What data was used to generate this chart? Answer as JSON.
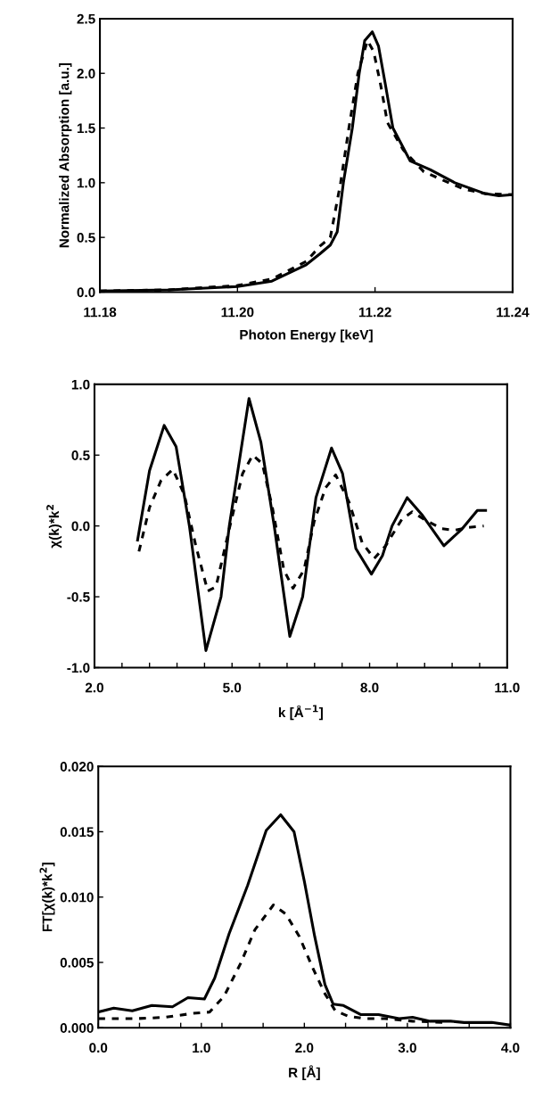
{
  "chart_data": [
    {
      "type": "line",
      "xlabel": "Photon Energy [keV]",
      "ylabel": "Normalized Absorption [a.u.]",
      "xlim": [
        11.18,
        11.24
      ],
      "ylim": [
        0,
        2.5
      ],
      "xticks": [
        {
          "value": 11.18,
          "label": "11.18"
        },
        {
          "value": 11.2,
          "label": "11.20"
        },
        {
          "value": 11.22,
          "label": "11.22"
        },
        {
          "value": 11.24,
          "label": "11.24"
        }
      ],
      "yticks": [
        {
          "value": 0,
          "label": "0.0"
        },
        {
          "value": 0.5,
          "label": "0.5"
        },
        {
          "value": 1,
          "label": "1.0"
        },
        {
          "value": 1.5,
          "label": "1.5"
        },
        {
          "value": 2,
          "label": "2.0"
        },
        {
          "value": 2.5,
          "label": "2.5"
        }
      ],
      "series": [
        {
          "color": "#000000",
          "line_style": "solid",
          "x": [
            11.18,
            11.19,
            11.2,
            11.205,
            11.21,
            11.212,
            11.2135,
            11.2145,
            11.2154,
            11.2167,
            11.2177,
            11.2185,
            11.2196,
            11.2205,
            11.2215,
            11.2226,
            11.2251,
            11.228,
            11.2316,
            11.236,
            11.238,
            11.24
          ],
          "values": [
            0.01,
            0.02,
            0.05,
            0.1,
            0.25,
            0.35,
            0.43,
            0.55,
            1.0,
            1.5,
            2.0,
            2.3,
            2.38,
            2.25,
            1.9,
            1.5,
            1.2,
            1.12,
            1.0,
            0.9,
            0.88,
            0.89
          ]
        },
        {
          "color": "#000000",
          "line_style": "dashed",
          "x": [
            11.18,
            11.19,
            11.2,
            11.205,
            11.21,
            11.212,
            11.2135,
            11.215,
            11.2162,
            11.2175,
            11.2189,
            11.2198,
            11.2208,
            11.2218,
            11.2241,
            11.2271,
            11.2311,
            11.233,
            11.236,
            11.24
          ],
          "values": [
            0.01,
            0.02,
            0.06,
            0.12,
            0.28,
            0.42,
            0.5,
            1.0,
            1.5,
            2.0,
            2.3,
            2.2,
            1.9,
            1.55,
            1.3,
            1.1,
            0.99,
            0.94,
            0.9,
            0.89
          ]
        }
      ]
    },
    {
      "type": "line",
      "xlabel": "k [Å$^{−1}$]",
      "ylabel": "χ(k)*k$^{2}$",
      "xlim": [
        2,
        11
      ],
      "ylim": [
        -1,
        1
      ],
      "xticks": [
        {
          "value": 2,
          "label": "2.0"
        },
        {
          "value": 2.6,
          "label": null
        },
        {
          "value": 3.2,
          "label": null
        },
        {
          "value": 3.8,
          "label": null
        },
        {
          "value": 4.4,
          "label": null
        },
        {
          "value": 5,
          "label": "5.0"
        },
        {
          "value": 5.6,
          "label": null
        },
        {
          "value": 6.2,
          "label": null
        },
        {
          "value": 6.8,
          "label": null
        },
        {
          "value": 7.4,
          "label": null
        },
        {
          "value": 8,
          "label": "8.0"
        },
        {
          "value": 8.6,
          "label": null
        },
        {
          "value": 9.2,
          "label": null
        },
        {
          "value": 9.8,
          "label": null
        },
        {
          "value": 10.4,
          "label": null
        },
        {
          "value": 11,
          "label": "11.0"
        }
      ],
      "yticks": [
        {
          "value": -1,
          "label": "-1.0"
        },
        {
          "value": -0.5,
          "label": "-0.5"
        },
        {
          "value": 0,
          "label": "0.0"
        },
        {
          "value": 0.5,
          "label": "0.5"
        },
        {
          "value": 1,
          "label": "1.0"
        }
      ],
      "series": [
        {
          "color": "#000000",
          "line_style": "solid",
          "x": [
            2.94,
            3.2,
            3.52,
            3.78,
            4.07,
            4.43,
            4.76,
            4.94,
            5.37,
            5.63,
            5.92,
            6.26,
            6.54,
            6.83,
            7.17,
            7.41,
            7.7,
            8.04,
            8.28,
            8.49,
            8.82,
            9.14,
            9.62,
            10.02,
            10.35,
            10.53
          ],
          "values": [
            -0.1,
            0.39,
            0.71,
            0.56,
            0.0,
            -0.88,
            -0.5,
            0.0,
            0.9,
            0.59,
            0.0,
            -0.78,
            -0.5,
            0.2,
            0.55,
            0.37,
            -0.16,
            -0.34,
            -0.21,
            0.0,
            0.2,
            0.08,
            -0.14,
            -0.02,
            0.11,
            0.11
          ]
        },
        {
          "color": "#000000",
          "line_style": "dashed",
          "x": [
            2.97,
            3.2,
            3.45,
            3.71,
            3.96,
            4.21,
            4.47,
            4.65,
            4.94,
            5.23,
            5.45,
            5.66,
            5.88,
            6.13,
            6.33,
            6.57,
            6.79,
            7.04,
            7.26,
            7.55,
            7.84,
            8.1,
            8.35,
            8.71,
            8.93,
            9.22,
            9.58,
            9.87,
            10.16,
            10.49
          ],
          "values": [
            -0.18,
            0.13,
            0.32,
            0.4,
            0.22,
            -0.14,
            -0.46,
            -0.43,
            -0.02,
            0.37,
            0.5,
            0.44,
            0.13,
            -0.31,
            -0.44,
            -0.31,
            0.03,
            0.27,
            0.36,
            0.17,
            -0.12,
            -0.23,
            -0.14,
            0.05,
            0.1,
            0.04,
            -0.02,
            -0.03,
            -0.01,
            0.0
          ]
        }
      ]
    },
    {
      "type": "line",
      "xlabel": "R [Å]",
      "ylabel": "FT[χ(k)*k$^{2}$]",
      "xlim": [
        0,
        4
      ],
      "ylim": [
        0,
        0.02
      ],
      "xticks": [
        {
          "value": 0,
          "label": "0.0"
        },
        {
          "value": 0.4,
          "label": null
        },
        {
          "value": 0.8,
          "label": null
        },
        {
          "value": 1,
          "label": "1.0"
        },
        {
          "value": 1.2,
          "label": null
        },
        {
          "value": 1.6,
          "label": null
        },
        {
          "value": 2,
          "label": "2.0"
        },
        {
          "value": 2.4,
          "label": null
        },
        {
          "value": 2.8,
          "label": null
        },
        {
          "value": 3,
          "label": "3.0"
        },
        {
          "value": 3.2,
          "label": null
        },
        {
          "value": 3.6,
          "label": null
        },
        {
          "value": 4,
          "label": "4.0"
        }
      ],
      "yticks": [
        {
          "value": 0,
          "label": "0.000"
        },
        {
          "value": 0.005,
          "label": "0.005"
        },
        {
          "value": 0.01,
          "label": "0.010"
        },
        {
          "value": 0.015,
          "label": "0.015"
        },
        {
          "value": 0.02,
          "label": "0.020"
        }
      ],
      "series": [
        {
          "color": "#000000",
          "line_style": "solid",
          "x": [
            0,
            0.15,
            0.33,
            0.52,
            0.72,
            0.87,
            1.03,
            1.13,
            1.27,
            1.45,
            1.63,
            1.77,
            1.9,
            2.0,
            2.1,
            2.2,
            2.28,
            2.38,
            2.55,
            2.72,
            2.92,
            3.05,
            3.22,
            3.42,
            3.55,
            3.82,
            4.0
          ],
          "values": [
            0.0012,
            0.0015,
            0.0013,
            0.0017,
            0.0016,
            0.0023,
            0.0022,
            0.0038,
            0.0072,
            0.0109,
            0.0151,
            0.0163,
            0.015,
            0.0112,
            0.007,
            0.0033,
            0.0018,
            0.0017,
            0.001,
            0.001,
            0.0007,
            0.0008,
            0.0005,
            0.0005,
            0.0004,
            0.0004,
            0.0002
          ]
        },
        {
          "color": "#000000",
          "line_style": "dashed",
          "x": [
            0,
            0.38,
            0.65,
            0.92,
            1.08,
            1.22,
            1.38,
            1.52,
            1.7,
            1.82,
            1.95,
            2.08,
            2.2,
            2.3,
            2.42,
            2.58,
            2.78,
            3.05,
            3.38
          ],
          "values": [
            0.0007,
            0.0007,
            0.0008,
            0.0011,
            0.0012,
            0.0024,
            0.0049,
            0.0075,
            0.0094,
            0.0087,
            0.007,
            0.0046,
            0.0026,
            0.0013,
            0.0009,
            0.0007,
            0.0007,
            0.0005,
            0.0004
          ]
        }
      ]
    }
  ]
}
